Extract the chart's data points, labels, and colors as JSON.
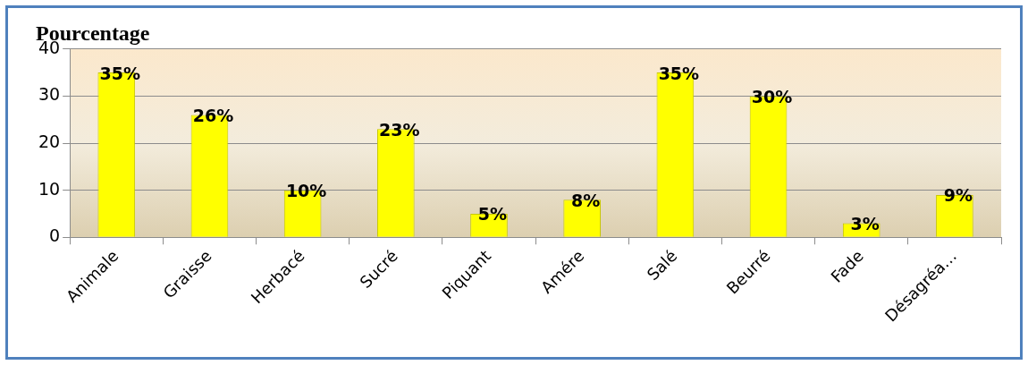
{
  "chart_data": {
    "type": "bar",
    "title": "Pourcentage",
    "categories": [
      "Animale",
      "Graisse",
      "Herbacé",
      "Sucré",
      "Piquant",
      "Amére",
      "Salé",
      "Beurré",
      "Fade",
      "Désagréa…"
    ],
    "values": [
      35,
      26,
      10,
      23,
      5,
      8,
      35,
      30,
      3,
      9
    ],
    "value_labels": [
      "35%",
      "26%",
      "10%",
      "23%",
      "5%",
      "8%",
      "35%",
      "30%",
      "3%",
      "9%"
    ],
    "color": "#ffff00",
    "ylim": [
      0,
      40
    ],
    "yticks": [
      0,
      10,
      20,
      30,
      40
    ],
    "grid": "y",
    "legend": false
  }
}
